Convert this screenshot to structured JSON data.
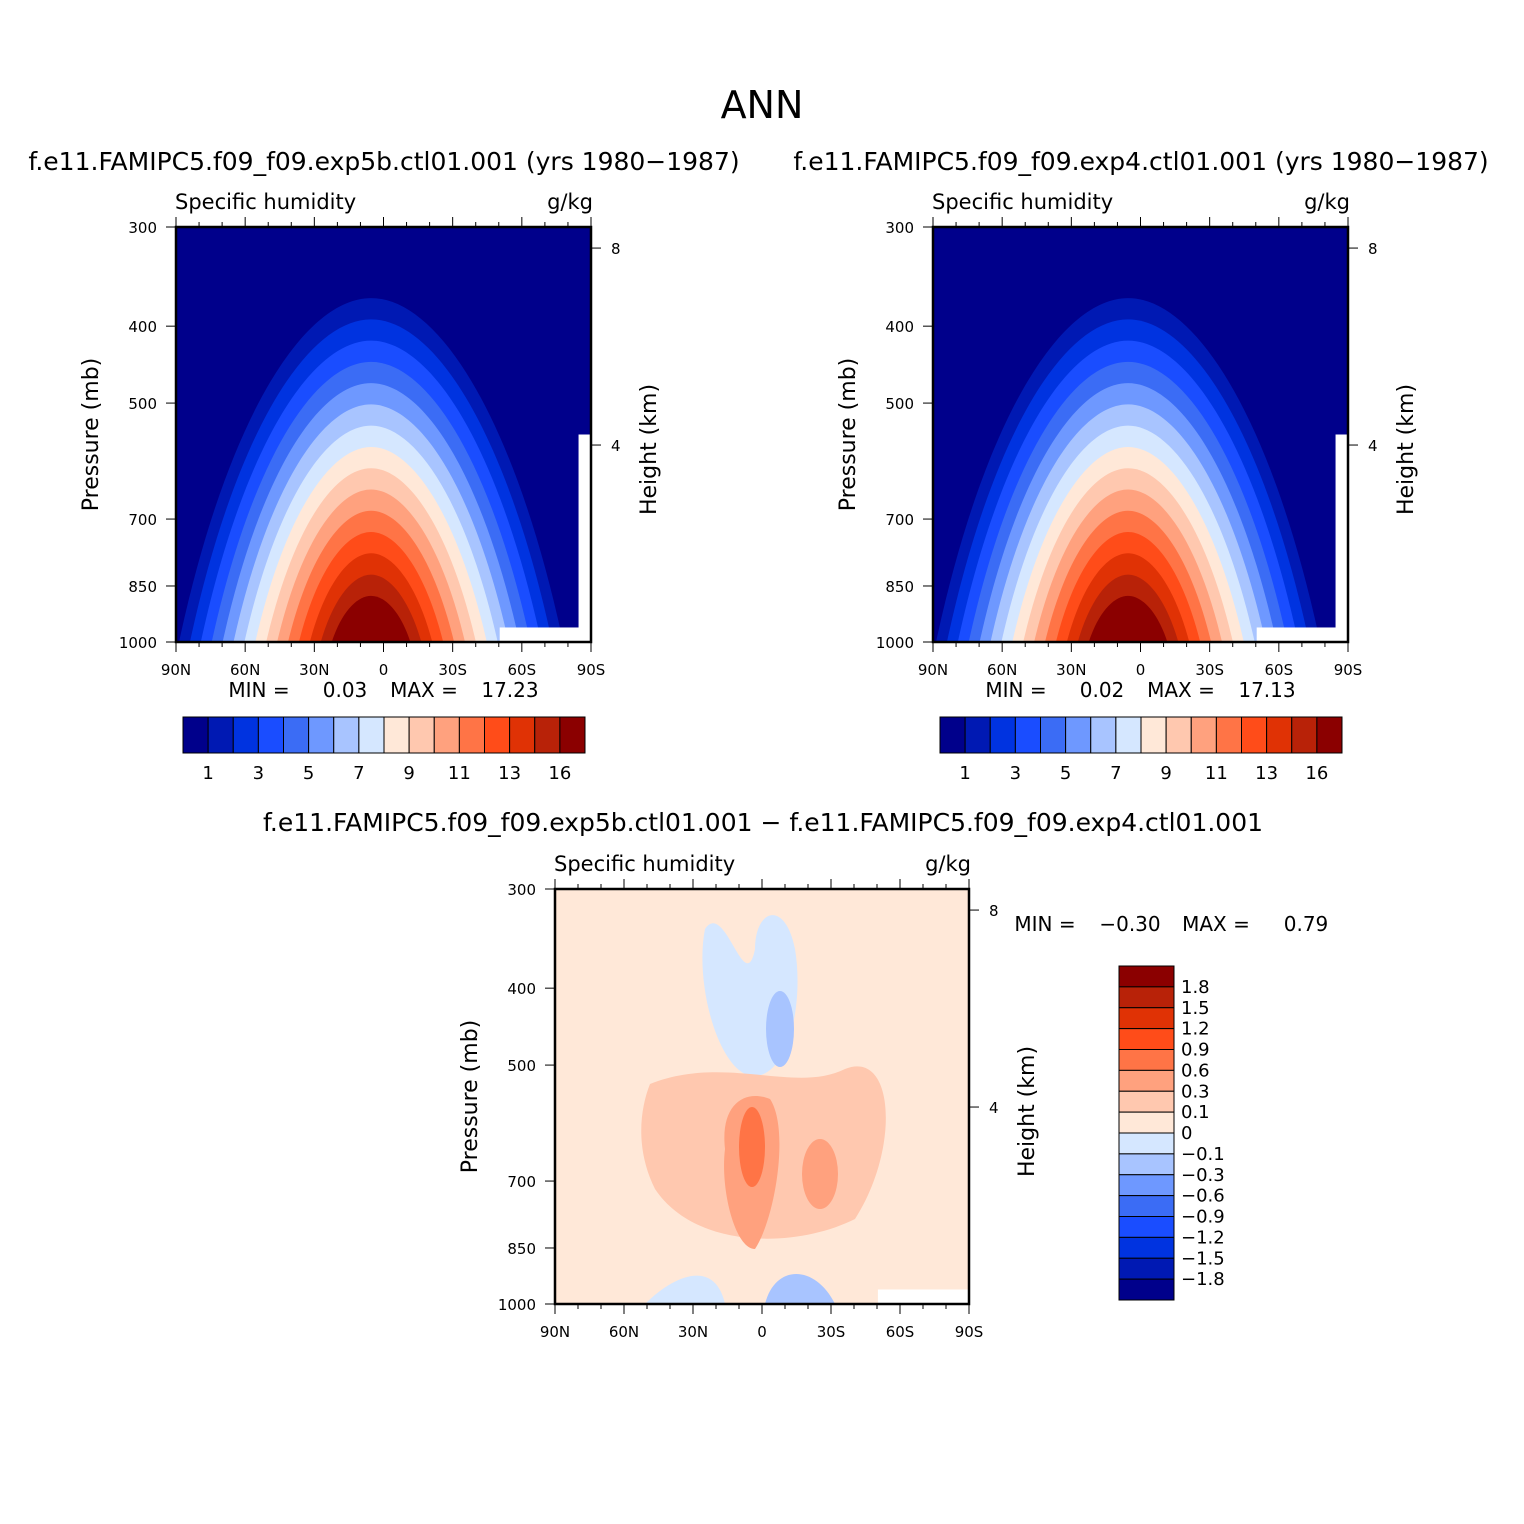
{
  "figure": {
    "title": "ANN",
    "diff_title": "f.e11.FAMIPC5.f09_f09.exp5b.ctl01.001 − f.e11.FAMIPC5.f09_f09.exp4.ctl01.001"
  },
  "chart_data": [
    {
      "type": "heatmap",
      "title": "f.e11.FAMIPC5.f09_f09.exp5b.ctl01.001 (yrs 1980−1987)",
      "left_label": "Specific humidity",
      "right_label": "g/kg",
      "ylabel": "Pressure (mb)",
      "ylabel_right": "Height (km)",
      "x_ticks": [
        "90N",
        "60N",
        "30N",
        "0",
        "30S",
        "60S",
        "90S"
      ],
      "x_values": [
        90,
        60,
        30,
        0,
        -30,
        -60,
        -90
      ],
      "xlim": [
        90,
        -90
      ],
      "y_ticks": [
        300,
        400,
        500,
        700,
        850,
        1000
      ],
      "ylim": [
        1000,
        300
      ],
      "y_scale": "log",
      "y_right_ticks": [
        8,
        4
      ],
      "min_label": "MIN =",
      "min_value": "0.03",
      "max_label": "MAX =",
      "max_value": "17.23",
      "colorbar": {
        "orientation": "horizontal",
        "colors": [
          "#00008b",
          "#0019b3",
          "#0033e0",
          "#1a4dff",
          "#3b6cf5",
          "#6e98ff",
          "#a8c4ff",
          "#d5e7ff",
          "#ffe8d8",
          "#ffc8af",
          "#ffa17e",
          "#ff7446",
          "#ff4c19",
          "#e03205",
          "#b82208",
          "#8b0000"
        ],
        "labels": [
          "1",
          "3",
          "5",
          "7",
          "9",
          "11",
          "13",
          "16"
        ]
      }
    },
    {
      "type": "heatmap",
      "title": "f.e11.FAMIPC5.f09_f09.exp4.ctl01.001 (yrs 1980−1987)",
      "left_label": "Specific humidity",
      "right_label": "g/kg",
      "ylabel": "Pressure (mb)",
      "ylabel_right": "Height (km)",
      "x_ticks": [
        "90N",
        "60N",
        "30N",
        "0",
        "30S",
        "60S",
        "90S"
      ],
      "x_values": [
        90,
        60,
        30,
        0,
        -30,
        -60,
        -90
      ],
      "xlim": [
        90,
        -90
      ],
      "y_ticks": [
        300,
        400,
        500,
        700,
        850,
        1000
      ],
      "ylim": [
        1000,
        300
      ],
      "y_scale": "log",
      "y_right_ticks": [
        8,
        4
      ],
      "min_label": "MIN =",
      "min_value": "0.02",
      "max_label": "MAX =",
      "max_value": "17.13",
      "colorbar": {
        "orientation": "horizontal",
        "colors": [
          "#00008b",
          "#0019b3",
          "#0033e0",
          "#1a4dff",
          "#3b6cf5",
          "#6e98ff",
          "#a8c4ff",
          "#d5e7ff",
          "#ffe8d8",
          "#ffc8af",
          "#ffa17e",
          "#ff7446",
          "#ff4c19",
          "#e03205",
          "#b82208",
          "#8b0000"
        ],
        "labels": [
          "1",
          "3",
          "5",
          "7",
          "9",
          "11",
          "13",
          "16"
        ]
      }
    },
    {
      "type": "heatmap",
      "left_label": "Specific humidity",
      "right_label": "g/kg",
      "ylabel": "Pressure (mb)",
      "ylabel_right": "Height (km)",
      "x_ticks": [
        "90N",
        "60N",
        "30N",
        "0",
        "30S",
        "60S",
        "90S"
      ],
      "x_values": [
        90,
        60,
        30,
        0,
        -30,
        -60,
        -90
      ],
      "xlim": [
        90,
        -90
      ],
      "y_ticks": [
        300,
        400,
        500,
        700,
        850,
        1000
      ],
      "ylim": [
        1000,
        300
      ],
      "y_scale": "log",
      "y_right_ticks": [
        8,
        4
      ],
      "min_label": "MIN =",
      "min_value": "−0.30",
      "max_label": "MAX =",
      "max_value": "0.79",
      "colorbar": {
        "orientation": "vertical",
        "colors": [
          "#8b0000",
          "#b82208",
          "#e03205",
          "#ff4c19",
          "#ff7446",
          "#ffa17e",
          "#ffc8af",
          "#ffe8d8",
          "#d5e7ff",
          "#a8c4ff",
          "#6e98ff",
          "#3b6cf5",
          "#1a4dff",
          "#0033e0",
          "#0019b3",
          "#00008b"
        ],
        "labels": [
          "1.8",
          "1.5",
          "1.2",
          "0.9",
          "0.6",
          "0.3",
          "0.1",
          "0",
          "−0.1",
          "−0.3",
          "−0.6",
          "−0.9",
          "−1.2",
          "−1.5",
          "−1.8"
        ]
      }
    }
  ]
}
